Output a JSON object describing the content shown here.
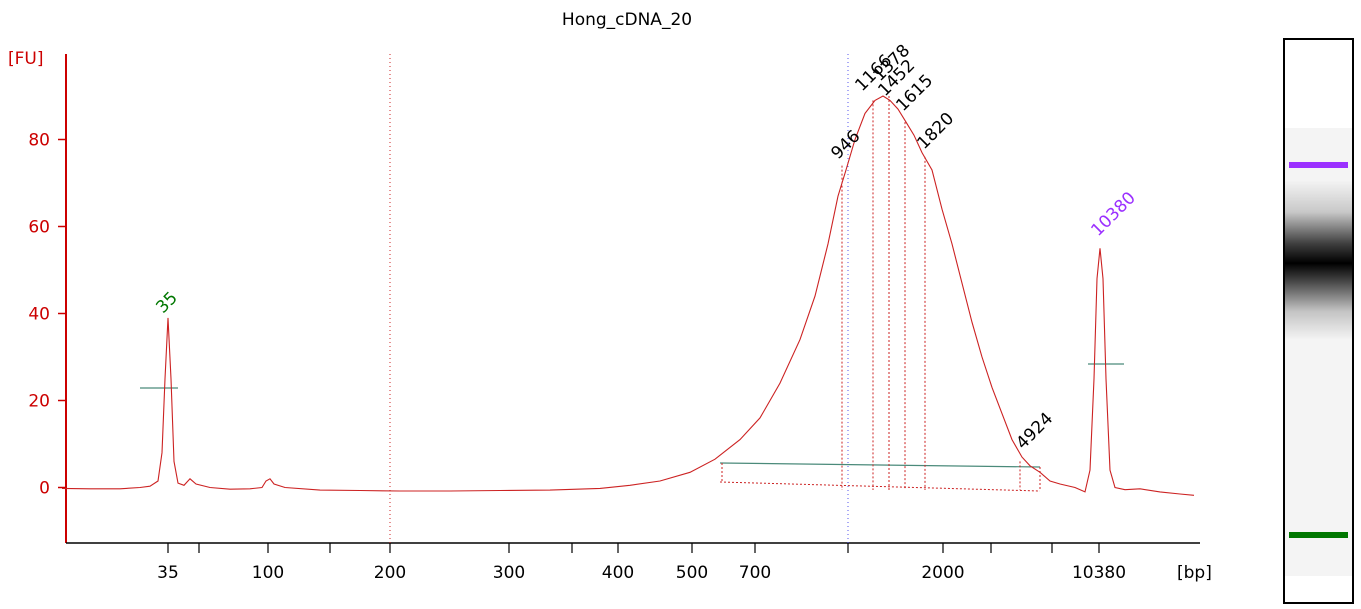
{
  "chart_data": {
    "type": "line",
    "title": "Hong_cDNA_20",
    "ylabel": "[FU]",
    "xlabel": "[bp]",
    "ylim": [
      -12,
      100
    ],
    "y_ticks": [
      0,
      20,
      40,
      60,
      80
    ],
    "x_ticks": [
      "35",
      "100",
      "200",
      "300",
      "400",
      "500",
      "700",
      "2000",
      "10380"
    ],
    "peaks": [
      {
        "label": "35",
        "color": "#007700",
        "fu": 39,
        "x": 35
      },
      {
        "label": "946",
        "color": "#000000",
        "fu": 74,
        "x": 946
      },
      {
        "label": "1166",
        "color": "#000000",
        "fu": 89,
        "x": 1166
      },
      {
        "label": "1378",
        "color": "#000000",
        "fu": 90,
        "x": 1378
      },
      {
        "label": "1452",
        "color": "#000000",
        "fu": 88,
        "x": 1452
      },
      {
        "label": "1615",
        "color": "#000000",
        "fu": 84,
        "x": 1615
      },
      {
        "label": "1820",
        "color": "#000000",
        "fu": 76,
        "x": 1820
      },
      {
        "label": "4924",
        "color": "#000000",
        "fu": 6,
        "x": 4924
      },
      {
        "label": "10380",
        "color": "#9b30ff",
        "fu": 55,
        "x": 10380
      }
    ],
    "series": [
      {
        "color": "#cc2222",
        "points": [
          [
            62,
            -0.2
          ],
          [
            90,
            -0.3
          ],
          [
            120,
            -0.3
          ],
          [
            140,
            0
          ],
          [
            150,
            0.3
          ],
          [
            158,
            1.5
          ],
          [
            162,
            8
          ],
          [
            165,
            25
          ],
          [
            168,
            39
          ],
          [
            171,
            25
          ],
          [
            174,
            6
          ],
          [
            178,
            1
          ],
          [
            184,
            0.5
          ],
          [
            190,
            2
          ],
          [
            196,
            0.8
          ],
          [
            210,
            0
          ],
          [
            230,
            -0.4
          ],
          [
            250,
            -0.3
          ],
          [
            262,
            0
          ],
          [
            266,
            1.5
          ],
          [
            270,
            2
          ],
          [
            274,
            0.8
          ],
          [
            285,
            0
          ],
          [
            320,
            -0.6
          ],
          [
            360,
            -0.7
          ],
          [
            400,
            -0.8
          ],
          [
            450,
            -0.8
          ],
          [
            500,
            -0.7
          ],
          [
            550,
            -0.6
          ],
          [
            600,
            -0.2
          ],
          [
            630,
            0.5
          ],
          [
            660,
            1.5
          ],
          [
            690,
            3.5
          ],
          [
            715,
            6.5
          ],
          [
            740,
            11
          ],
          [
            760,
            16
          ],
          [
            780,
            24
          ],
          [
            800,
            34
          ],
          [
            815,
            44
          ],
          [
            828,
            56
          ],
          [
            838,
            67
          ],
          [
            846,
            73
          ],
          [
            855,
            80
          ],
          [
            865,
            86
          ],
          [
            875,
            89
          ],
          [
            883,
            90
          ],
          [
            890,
            89
          ],
          [
            898,
            87
          ],
          [
            906,
            84
          ],
          [
            914,
            81
          ],
          [
            922,
            77
          ],
          [
            932,
            73
          ],
          [
            942,
            64
          ],
          [
            952,
            56
          ],
          [
            962,
            47
          ],
          [
            972,
            38
          ],
          [
            982,
            30
          ],
          [
            992,
            23
          ],
          [
            1002,
            17
          ],
          [
            1012,
            11
          ],
          [
            1022,
            7
          ],
          [
            1030,
            5
          ],
          [
            1040,
            3.5
          ],
          [
            1050,
            1.5
          ],
          [
            1060,
            0.8
          ],
          [
            1075,
            0
          ],
          [
            1085,
            -1
          ],
          [
            1090,
            4
          ],
          [
            1094,
            25
          ],
          [
            1097,
            48
          ],
          [
            1100,
            55
          ],
          [
            1103,
            48
          ],
          [
            1106,
            25
          ],
          [
            1110,
            4
          ],
          [
            1115,
            0
          ],
          [
            1125,
            -0.5
          ],
          [
            1140,
            -0.3
          ],
          [
            1160,
            -1
          ],
          [
            1180,
            -1.5
          ],
          [
            1194,
            -1.8
          ]
        ]
      }
    ]
  },
  "gel": {
    "band_upper_color": "#9b30ff",
    "band_lower_color": "#007700"
  }
}
